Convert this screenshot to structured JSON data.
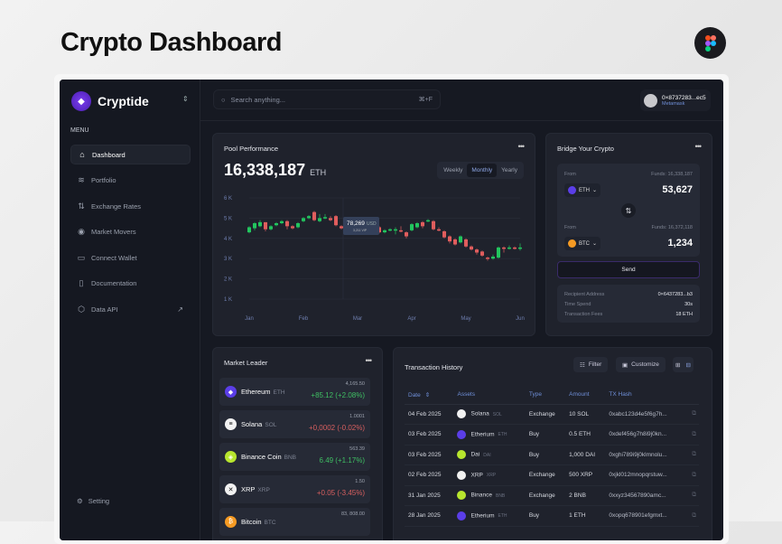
{
  "page_title": "Crypto Dashboard",
  "sidebar": {
    "brand": "Cryptide",
    "menu_label": "MENU",
    "items": [
      {
        "label": "Dashboard",
        "icon": "home-icon",
        "active": true
      },
      {
        "label": "Portfolio",
        "icon": "layers-icon"
      },
      {
        "label": "Exchange Rates",
        "icon": "arrows-updown-icon"
      },
      {
        "label": "Market Movers",
        "icon": "coin-icon"
      },
      {
        "label": "Connect Wallet",
        "icon": "wallet-icon"
      },
      {
        "label": "Documentation",
        "icon": "clipboard-icon"
      },
      {
        "label": "Data API",
        "icon": "cube-icon"
      }
    ],
    "setting": "Setting"
  },
  "header": {
    "search_placeholder": "Search anything...",
    "shortcut": "⌘+F",
    "wallet_address": "0×8737283...ec5",
    "wallet_name": "Metamask"
  },
  "pool": {
    "title": "Pool Performance",
    "value": "16,338,187",
    "unit": "ETH",
    "tabs": [
      "Weekly",
      "Monthly",
      "Yearly"
    ],
    "active_tab": "Monthly",
    "tooltip_value": "78,269",
    "tooltip_unit": "USD",
    "tooltip_sub": "3,211 VIP"
  },
  "chart_data": {
    "type": "candlestick",
    "y_ticks": [
      "6 K",
      "5 K",
      "4 K",
      "3 K",
      "2 K",
      "1 K"
    ],
    "ylim": [
      1,
      6
    ],
    "x_ticks": [
      "Jan",
      "Feb",
      "Mar",
      "Apr",
      "May",
      "Jun"
    ],
    "grid": true,
    "candles_ohlc_k": [
      [
        4.3,
        4.55,
        4.6,
        4.25
      ],
      [
        4.5,
        4.75,
        4.8,
        4.4
      ],
      [
        4.6,
        4.8,
        4.9,
        4.55
      ],
      [
        4.8,
        4.45,
        4.8,
        4.35
      ],
      [
        4.45,
        4.6,
        4.65,
        4.4
      ],
      [
        4.65,
        4.75,
        4.8,
        4.6
      ],
      [
        4.75,
        4.85,
        4.9,
        4.7
      ],
      [
        4.85,
        4.6,
        4.9,
        4.45
      ],
      [
        4.6,
        4.5,
        4.65,
        4.45
      ],
      [
        4.55,
        4.75,
        4.8,
        4.5
      ],
      [
        4.85,
        5.0,
        5.05,
        4.8
      ],
      [
        5.0,
        5.1,
        5.15,
        4.95
      ],
      [
        5.3,
        4.9,
        5.35,
        4.85
      ],
      [
        4.85,
        5.0,
        5.2,
        4.8
      ],
      [
        5.0,
        5.05,
        5.2,
        4.95
      ],
      [
        5.0,
        4.9,
        5.1,
        4.85
      ],
      [
        5.1,
        4.65,
        5.15,
        4.6
      ],
      [
        4.6,
        4.5,
        4.65,
        4.45
      ],
      [
        4.5,
        4.55,
        4.6,
        4.45
      ],
      [
        4.55,
        4.5,
        4.6,
        4.45
      ],
      [
        4.45,
        4.5,
        4.55,
        4.4
      ],
      [
        4.5,
        4.45,
        4.55,
        4.4
      ],
      [
        4.4,
        4.75,
        4.8,
        4.35
      ],
      [
        4.65,
        4.45,
        4.7,
        4.4
      ],
      [
        4.55,
        4.3,
        4.6,
        4.25
      ],
      [
        4.3,
        4.4,
        4.45,
        4.25
      ],
      [
        4.4,
        4.45,
        4.5,
        4.35
      ],
      [
        4.4,
        4.45,
        4.55,
        4.2
      ],
      [
        4.4,
        4.35,
        4.6,
        4.3
      ],
      [
        4.3,
        4.1,
        4.35,
        4.0
      ],
      [
        4.4,
        4.7,
        4.75,
        4.35
      ],
      [
        4.55,
        4.75,
        4.8,
        4.5
      ],
      [
        4.8,
        4.6,
        4.85,
        4.5
      ],
      [
        4.85,
        4.9,
        4.95,
        4.8
      ],
      [
        4.85,
        4.45,
        4.9,
        4.4
      ],
      [
        4.45,
        4.4,
        4.55,
        4.35
      ],
      [
        4.35,
        4.05,
        4.4,
        4.0
      ],
      [
        4.1,
        3.85,
        4.15,
        3.75
      ],
      [
        3.95,
        3.7,
        4.0,
        3.65
      ],
      [
        3.8,
        4.1,
        4.15,
        3.75
      ],
      [
        3.95,
        3.6,
        4.0,
        3.55
      ],
      [
        3.6,
        3.45,
        3.65,
        3.4
      ],
      [
        3.45,
        3.3,
        3.5,
        3.2
      ],
      [
        3.35,
        3.15,
        3.4,
        3.1
      ],
      [
        3.05,
        3.0,
        3.1,
        2.9
      ],
      [
        3.0,
        3.1,
        3.2,
        2.95
      ],
      [
        3.05,
        3.55,
        3.6,
        3.0
      ],
      [
        3.55,
        3.5,
        3.6,
        3.3
      ],
      [
        3.5,
        3.55,
        3.65,
        3.45
      ],
      [
        3.55,
        3.5,
        3.6,
        3.45
      ],
      [
        3.5,
        3.55,
        3.75,
        3.4
      ]
    ],
    "up_color": "#22c55e",
    "down_color": "#e05d5d"
  },
  "bridge": {
    "title": "Bridge Your Crypto",
    "from_label": "From",
    "from_funds": "Funds: 16,338,187",
    "from_token": "ETH",
    "from_amount": "53,627",
    "to_label": "From",
    "to_funds": "Funds: 16,372,118",
    "to_token": "BTC",
    "to_amount": "1,234",
    "send": "Send",
    "info": [
      {
        "k": "Recipient Address",
        "v": "0×6437283...b3"
      },
      {
        "k": "Time Spend",
        "v": "30s"
      },
      {
        "k": "Transaction Fees",
        "v": "18 ETH"
      }
    ]
  },
  "market": {
    "title": "Market Leader",
    "items": [
      {
        "name": "Ethereum",
        "sym": "ETH",
        "price": "4,165.50",
        "change": "+85.12 (+2.08%)",
        "up": true,
        "color": "#5b3ee8",
        "glyph": "◆"
      },
      {
        "name": "Solana",
        "sym": "SOL",
        "price": "1.0001",
        "change": "+0,0002 (-0.02%)",
        "up": false,
        "color": "#f2f2f2",
        "glyph": "≡"
      },
      {
        "name": "Binance Coin",
        "sym": "BNB",
        "price": "563.39",
        "change": "6.49 (+1.17%)",
        "up": true,
        "color": "#b8e62e",
        "glyph": "◈"
      },
      {
        "name": "XRP",
        "sym": "XRP",
        "price": "1.50",
        "change": "+0.05 (-3.45%)",
        "up": false,
        "color": "#f2f2f2",
        "glyph": "✕"
      },
      {
        "name": "Bitcoin",
        "sym": "BTC",
        "price": "83, 808.00",
        "change": "",
        "up": true,
        "color": "#f59a23",
        "glyph": "₿"
      }
    ]
  },
  "tx": {
    "title": "Transaction History",
    "filter": "Filter",
    "customize": "Customize",
    "columns": [
      "Date",
      "Assets",
      "Type",
      "Amount",
      "TX Hash"
    ],
    "rows": [
      {
        "date": "04 Feb 2025",
        "asset": "Solana",
        "sym": "SOL",
        "type": "Exchange",
        "amount": "10 SOL",
        "hash": "0xabc123d4e5f6g7h...",
        "color": "#f2f2f2"
      },
      {
        "date": "03 Feb 2025",
        "asset": "Etherium",
        "sym": "ETH",
        "type": "Buy",
        "amount": "0.5 ETH",
        "hash": "0xdef456g7h8i9j0kn...",
        "color": "#5b3ee8"
      },
      {
        "date": "03 Feb 2025",
        "asset": "Dai",
        "sym": "DAI",
        "type": "Buy",
        "amount": "1,000 DAI",
        "hash": "0xghi789i9j0klmnolu...",
        "color": "#b8e62e"
      },
      {
        "date": "02 Feb 2025",
        "asset": "XRP",
        "sym": "XRP",
        "type": "Exchange",
        "amount": "500 XRP",
        "hash": "0xjkl012mnopqrstuw...",
        "color": "#f2f2f2"
      },
      {
        "date": "31 Jan 2025",
        "asset": "Binance",
        "sym": "BNB",
        "type": "Exchange",
        "amount": "2 BNB",
        "hash": "0xxyz34567890amc...",
        "color": "#b8e62e"
      },
      {
        "date": "28 Jan 2025",
        "asset": "Etherium",
        "sym": "ETH",
        "type": "Buy",
        "amount": "1 ETH",
        "hash": "0xopq678901efgmxt...",
        "color": "#5b3ee8"
      }
    ]
  }
}
